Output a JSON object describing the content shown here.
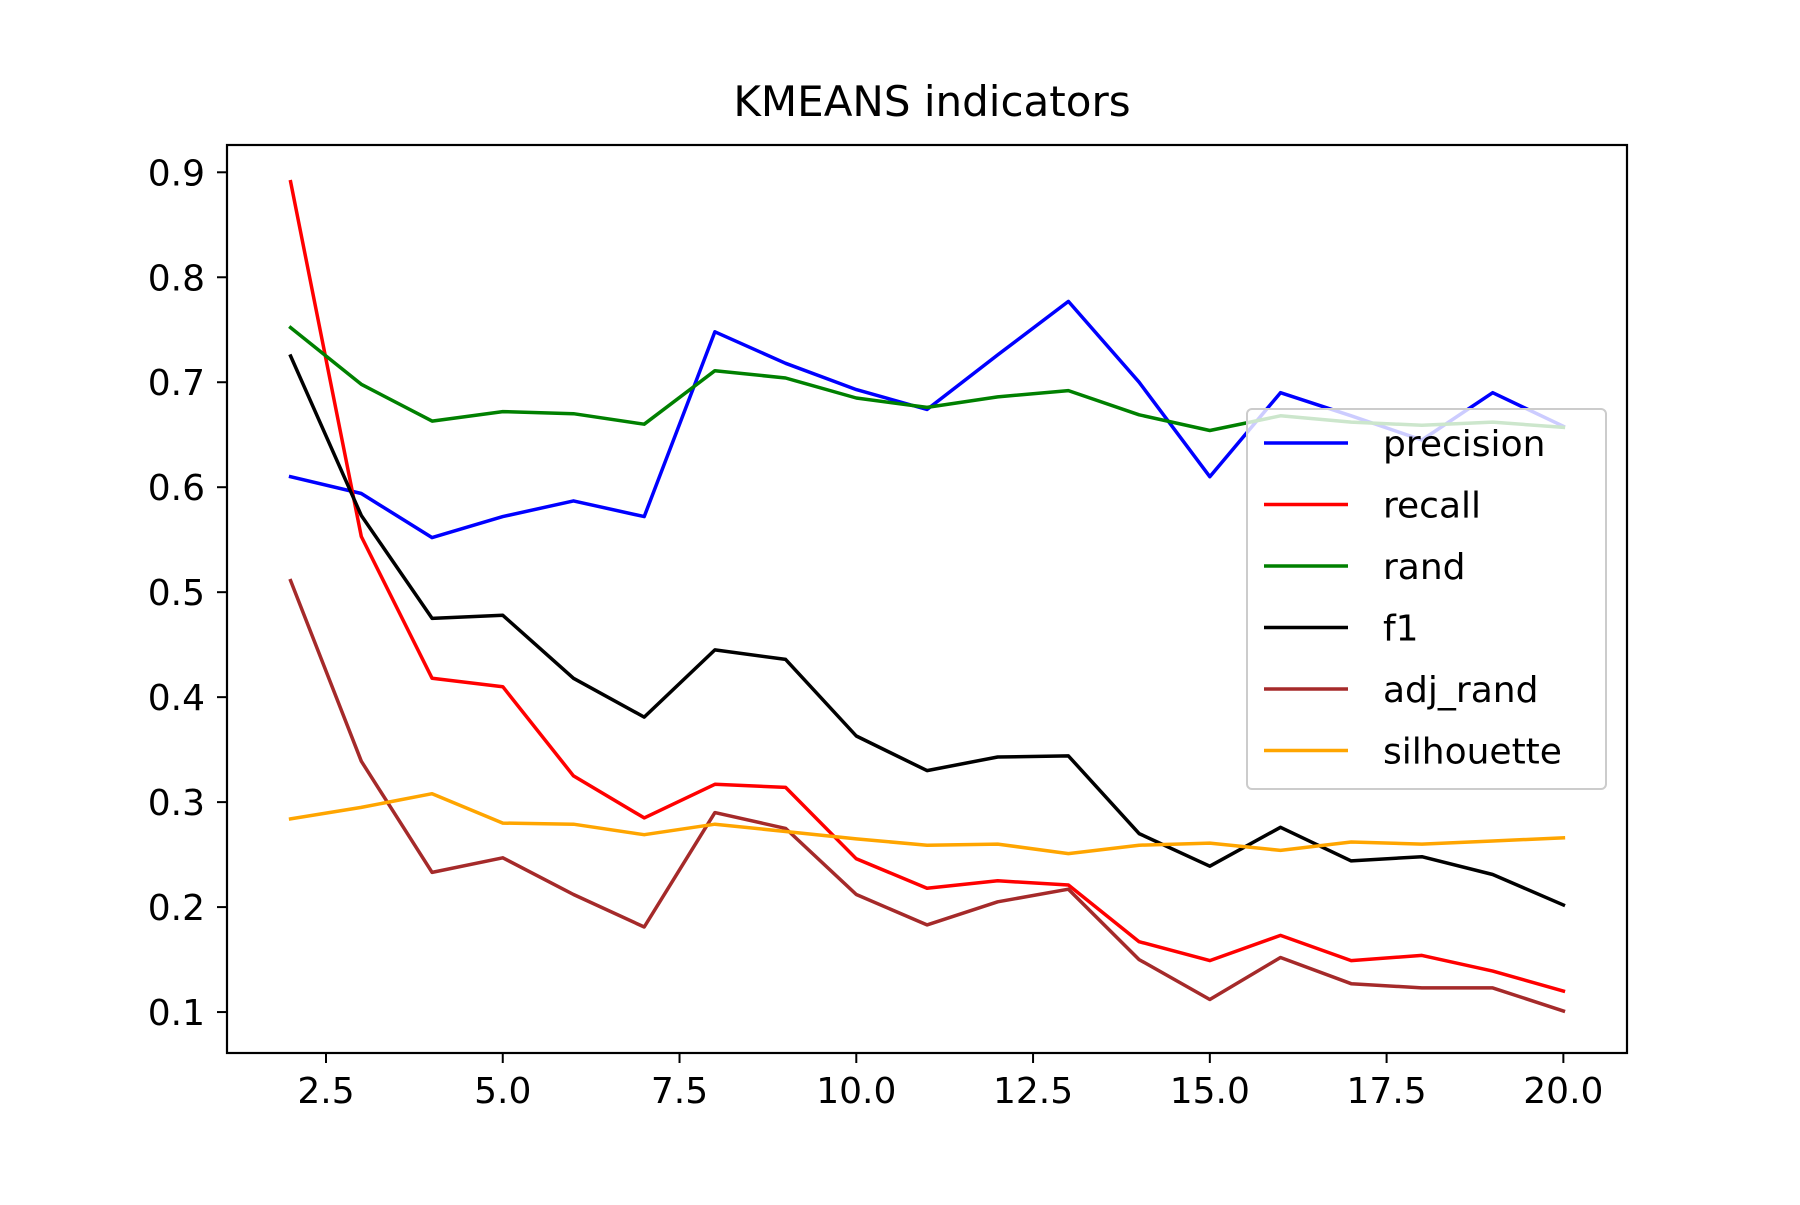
{
  "chart_data": {
    "type": "line",
    "title": "KMEANS indicators",
    "xlabel": "",
    "ylabel": "",
    "xlim": [
      1.1,
      20.9
    ],
    "ylim": [
      0.061,
      0.926
    ],
    "x_ticks": [
      2.5,
      5.0,
      7.5,
      10.0,
      12.5,
      15.0,
      17.5,
      20.0
    ],
    "x_tick_labels": [
      "2.5",
      "5.0",
      "7.5",
      "10.0",
      "12.5",
      "15.0",
      "17.5",
      "20.0"
    ],
    "y_ticks": [
      0.1,
      0.2,
      0.3,
      0.4,
      0.5,
      0.6,
      0.7,
      0.8,
      0.9
    ],
    "y_tick_labels": [
      "0.1",
      "0.2",
      "0.3",
      "0.4",
      "0.5",
      "0.6",
      "0.7",
      "0.8",
      "0.9"
    ],
    "grid": false,
    "legend_position": "center-right",
    "x": [
      2,
      3,
      4,
      5,
      6,
      7,
      8,
      9,
      10,
      11,
      12,
      13,
      14,
      15,
      16,
      17,
      18,
      19,
      20
    ],
    "series": [
      {
        "name": "precision",
        "color": "#0000ff",
        "values": [
          0.61,
          0.594,
          0.552,
          0.572,
          0.587,
          0.572,
          0.748,
          0.718,
          0.693,
          0.674,
          0.726,
          0.777,
          0.7,
          0.61,
          0.69,
          0.668,
          0.645,
          0.69,
          0.658
        ]
      },
      {
        "name": "recall",
        "color": "#ff0000",
        "values": [
          0.891,
          0.553,
          0.418,
          0.41,
          0.325,
          0.285,
          0.317,
          0.314,
          0.246,
          0.218,
          0.225,
          0.221,
          0.167,
          0.149,
          0.173,
          0.149,
          0.154,
          0.139,
          0.12
        ]
      },
      {
        "name": "rand",
        "color": "#008000",
        "values": [
          0.752,
          0.698,
          0.663,
          0.672,
          0.67,
          0.66,
          0.711,
          0.704,
          0.685,
          0.676,
          0.686,
          0.692,
          0.669,
          0.654,
          0.668,
          0.662,
          0.659,
          0.662,
          0.657
        ]
      },
      {
        "name": "f1",
        "color": "#000000",
        "values": [
          0.725,
          0.573,
          0.475,
          0.478,
          0.418,
          0.381,
          0.445,
          0.436,
          0.363,
          0.33,
          0.343,
          0.344,
          0.27,
          0.239,
          0.276,
          0.244,
          0.248,
          0.231,
          0.202
        ]
      },
      {
        "name": "adj_rand",
        "color": "#a52a2a",
        "values": [
          0.511,
          0.339,
          0.233,
          0.247,
          0.212,
          0.181,
          0.29,
          0.275,
          0.212,
          0.183,
          0.205,
          0.217,
          0.15,
          0.112,
          0.152,
          0.127,
          0.123,
          0.123,
          0.101
        ]
      },
      {
        "name": "silhouette",
        "color": "#ffa500",
        "values": [
          0.284,
          0.295,
          0.308,
          0.28,
          0.279,
          0.269,
          0.279,
          0.272,
          0.265,
          0.259,
          0.26,
          0.251,
          0.259,
          0.261,
          0.254,
          0.262,
          0.26,
          0.263,
          0.266
        ]
      }
    ]
  }
}
